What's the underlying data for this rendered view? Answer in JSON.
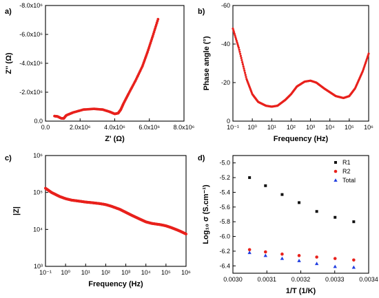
{
  "colors": {
    "red": "#e8211c",
    "black": "#111111",
    "blue": "#1f3de0"
  },
  "chart_data": [
    {
      "panel": "a)",
      "type": "scatter",
      "xlabel": "Z' (Ω)",
      "ylabel": "Z'' (Ω)",
      "xlim": [
        0,
        8000000
      ],
      "ylim": [
        0,
        -8000000
      ],
      "x_tick_labels": [
        "0.0",
        "2.0x10⁶",
        "4.0x10⁶",
        "6.0x10⁶",
        "8.0x10⁶"
      ],
      "y_tick_labels": [
        "0.0",
        "-2.0x10⁶",
        "-4.0x10⁶",
        "-6.0x10⁶",
        "-8.0x10⁶"
      ],
      "series": [
        {
          "color": "#e8211c",
          "x": [
            520000,
            700000,
            900000,
            1050000,
            1200000,
            1600000,
            2200000,
            2800000,
            3300000,
            3700000,
            4000000,
            4200000,
            4350000,
            4500000,
            4800000,
            5200000,
            5600000,
            5900000,
            6200000,
            6500000
          ],
          "y": [
            -350000,
            -320000,
            -200000,
            -180000,
            -400000,
            -600000,
            -800000,
            -850000,
            -800000,
            -650000,
            -500000,
            -550000,
            -800000,
            -1200000,
            -1900000,
            -2800000,
            -3800000,
            -4800000,
            -5900000,
            -7050000
          ]
        }
      ]
    },
    {
      "panel": "b)",
      "type": "scatter",
      "xlabel": "Frequency (Hz)",
      "ylabel": "Phase angle (°)",
      "xscale": "log",
      "xlim": [
        0.1,
        1000000
      ],
      "ylim": [
        0,
        -60
      ],
      "x_tick_labels": [
        "10⁻¹",
        "10⁰",
        "10¹",
        "10²",
        "10³",
        "10⁴",
        "10⁵",
        "10⁶"
      ],
      "y_tick_labels": [
        "0",
        "-20",
        "-40",
        "-60"
      ],
      "series": [
        {
          "color": "#e8211c",
          "x": [
            0.1,
            0.2,
            0.5,
            1,
            2,
            5,
            10,
            20,
            50,
            100,
            200,
            500,
            1000,
            2000,
            5000,
            10000,
            20000,
            50000,
            100000,
            200000,
            500000,
            1000000
          ],
          "y": [
            -48,
            -38,
            -22,
            -14,
            -10,
            -8,
            -7.5,
            -8,
            -11,
            -14,
            -18,
            -20.5,
            -21,
            -20,
            -17,
            -15,
            -13,
            -12,
            -13,
            -17,
            -26,
            -35
          ]
        }
      ]
    },
    {
      "panel": "c)",
      "type": "scatter",
      "xlabel": "Frequency (Hz)",
      "ylabel": "|Z|",
      "xscale": "log",
      "yscale": "log",
      "xlim": [
        0.1,
        1000000
      ],
      "ylim": [
        1000,
        1000000
      ],
      "x_tick_labels": [
        "10⁻¹",
        "10⁰",
        "10¹",
        "10²",
        "10³",
        "10⁴",
        "10⁵",
        "10⁶"
      ],
      "y_tick_labels": [
        "10³",
        "10⁴",
        "10⁵",
        "10⁶"
      ],
      "series": [
        {
          "color": "#e8211c",
          "x": [
            0.1,
            0.2,
            0.5,
            1,
            2,
            5,
            10,
            20,
            50,
            100,
            200,
            500,
            1000,
            2000,
            5000,
            10000,
            20000,
            50000,
            100000,
            200000,
            500000,
            1000000
          ],
          "y": [
            130000,
            100000,
            78000,
            68000,
            62000,
            58000,
            55000,
            53000,
            50000,
            47000,
            42000,
            35000,
            29000,
            24000,
            19000,
            16000,
            14500,
            13500,
            12500,
            11000,
            9000,
            7500
          ]
        }
      ]
    },
    {
      "panel": "d)",
      "type": "scatter",
      "xlabel": "1/T (1/K)",
      "ylabel": "Log₁₀ σ (S.cm⁻¹)",
      "xlim": [
        0.003,
        0.0034
      ],
      "ylim": [
        -6.5,
        -4.9
      ],
      "legend": "top-right",
      "x_tick_labels": [
        "0.0030",
        "0.0031",
        "0.0032",
        "0.0033",
        "0.0034"
      ],
      "y_tick_labels": [
        "-6.4",
        "-6.2",
        "-6.0",
        "-5.8",
        "-5.6",
        "-5.4",
        "-5.2",
        "-5.0"
      ],
      "x": [
        0.003049,
        0.003096,
        0.003145,
        0.003195,
        0.003247,
        0.003301,
        0.003356
      ],
      "series": [
        {
          "name": "R1",
          "color": "#111111",
          "marker": "square",
          "values": [
            -5.2,
            -5.31,
            -5.43,
            -5.54,
            -5.66,
            -5.74,
            -5.8
          ]
        },
        {
          "name": "R2",
          "color": "#e8211c",
          "marker": "circle",
          "values": [
            -6.18,
            -6.21,
            -6.24,
            -6.26,
            -6.28,
            -6.3,
            -6.32
          ]
        },
        {
          "name": "Total",
          "color": "#1f3de0",
          "marker": "triangle",
          "values": [
            -6.22,
            -6.26,
            -6.3,
            -6.33,
            -6.37,
            -6.41,
            -6.42
          ]
        }
      ]
    }
  ]
}
